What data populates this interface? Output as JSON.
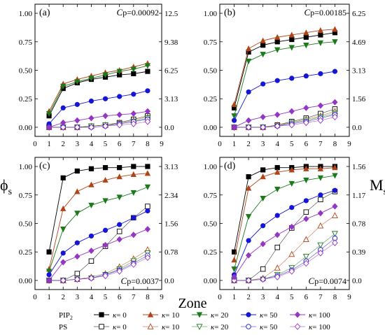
{
  "chart_data": {
    "type": "line",
    "xlabel": "Zone",
    "ylabel_left": "ϕ",
    "ylabel_left_sub": "s",
    "ylabel_right": "M",
    "ylabel_right_sub": "s",
    "legend": {
      "placement": "bottom",
      "groups": [
        {
          "label": "PIP",
          "sub": "2",
          "filled": true
        },
        {
          "label": "PS",
          "sub": "",
          "filled": false
        }
      ],
      "entries": [
        {
          "series_key": "k0",
          "label_prefix": "κ",
          "label_value": "= 0",
          "color": "#000000",
          "marker": "square"
        },
        {
          "series_key": "k10",
          "label_prefix": "κ",
          "label_value": "= 10",
          "color": "#b04418",
          "marker": "triangle-up"
        },
        {
          "series_key": "k20",
          "label_prefix": "κ",
          "label_value": "= 20",
          "color": "#1c7a1c",
          "marker": "triangle-down"
        },
        {
          "series_key": "k50",
          "label_prefix": "κ",
          "label_value": "= 50",
          "color": "#1515d6",
          "marker": "circle"
        },
        {
          "series_key": "k100",
          "label_prefix": "κ",
          "label_value": "= 100",
          "color": "#9436c4",
          "marker": "diamond"
        }
      ]
    },
    "x_ticks": [
      "0",
      "1",
      "2",
      "3",
      "4",
      "5",
      "6",
      "7",
      "8",
      "9"
    ],
    "xlim": [
      0,
      9
    ],
    "ylim": [
      -0.08,
      1.08
    ],
    "y_ticks": [
      0.0,
      0.25,
      0.5,
      0.75,
      1.0
    ],
    "y_tick_labels": [
      "0.00",
      "0.25",
      "0.50",
      "0.75",
      "1.00"
    ],
    "x": [
      1,
      2,
      3,
      4,
      5,
      6,
      7,
      8
    ],
    "panels": [
      {
        "tag": "(a)",
        "cp_text": "p=0.00092",
        "cp_position": "top-right",
        "right_ticks": [
          "0.0",
          "3.13",
          "6.25",
          "9.38",
          "12.5"
        ],
        "series": {
          "PIP2": {
            "k0": [
              0.1,
              0.34,
              0.39,
              0.42,
              0.44,
              0.46,
              0.47,
              0.49
            ],
            "k10": [
              0.14,
              0.38,
              0.42,
              0.45,
              0.48,
              0.5,
              0.53,
              0.56
            ],
            "k20": [
              0.12,
              0.36,
              0.4,
              0.43,
              0.46,
              0.49,
              0.51,
              0.54
            ],
            "k50": [
              0.03,
              0.17,
              0.2,
              0.23,
              0.25,
              0.27,
              0.29,
              0.32
            ],
            "k100": [
              0.0,
              0.04,
              0.06,
              0.08,
              0.1,
              0.11,
              0.12,
              0.14
            ]
          },
          "PS": {
            "k0": [
              0.0,
              0.0,
              0.0,
              0.01,
              0.02,
              0.04,
              0.07,
              0.1
            ],
            "k10": [
              0.0,
              0.0,
              0.0,
              0.01,
              0.02,
              0.04,
              0.06,
              0.09
            ],
            "k20": [
              0.0,
              0.0,
              0.0,
              0.01,
              0.02,
              0.03,
              0.05,
              0.08
            ],
            "k50": [
              0.0,
              0.0,
              0.0,
              0.0,
              0.01,
              0.03,
              0.05,
              0.07
            ],
            "k100": [
              0.0,
              0.0,
              0.0,
              0.0,
              0.01,
              0.02,
              0.03,
              0.05
            ]
          }
        }
      },
      {
        "tag": "(b)",
        "cp_text": "p=0.00185",
        "cp_position": "top-right",
        "right_ticks": [
          "0.0",
          "1.56",
          "3.13",
          "4.69",
          "6.25"
        ],
        "series": {
          "PIP2": {
            "k0": [
              0.17,
              0.66,
              0.72,
              0.75,
              0.77,
              0.79,
              0.81,
              0.83
            ],
            "k10": [
              0.2,
              0.69,
              0.76,
              0.79,
              0.81,
              0.83,
              0.85,
              0.86
            ],
            "k20": [
              0.1,
              0.58,
              0.64,
              0.68,
              0.7,
              0.72,
              0.74,
              0.75
            ],
            "k50": [
              0.06,
              0.31,
              0.38,
              0.41,
              0.43,
              0.45,
              0.47,
              0.49
            ],
            "k100": [
              0.0,
              0.06,
              0.09,
              0.11,
              0.14,
              0.17,
              0.19,
              0.22
            ]
          },
          "PS": {
            "k0": [
              0.0,
              0.0,
              0.0,
              0.02,
              0.05,
              0.08,
              0.12,
              0.16
            ],
            "k10": [
              0.0,
              0.0,
              0.0,
              0.02,
              0.04,
              0.07,
              0.1,
              0.14
            ],
            "k20": [
              0.0,
              0.0,
              0.0,
              0.01,
              0.04,
              0.06,
              0.09,
              0.12
            ],
            "k50": [
              0.0,
              0.0,
              0.0,
              0.01,
              0.03,
              0.05,
              0.08,
              0.11
            ],
            "k100": [
              0.0,
              0.0,
              0.0,
              0.01,
              0.02,
              0.04,
              0.06,
              0.09
            ]
          }
        }
      },
      {
        "tag": "(c)",
        "cp_text": "p=0.0037",
        "cp_position": "bottom-right",
        "right_ticks": [
          "0.0",
          "0.78",
          "1.56",
          "2.34",
          "3.13"
        ],
        "series": {
          "PIP2": {
            "k0": [
              0.25,
              0.9,
              0.96,
              0.98,
              0.99,
              0.99,
              1.0,
              1.0
            ],
            "k10": [
              0.1,
              0.63,
              0.78,
              0.84,
              0.88,
              0.91,
              0.93,
              0.94
            ],
            "k20": [
              0.08,
              0.45,
              0.59,
              0.66,
              0.7,
              0.73,
              0.77,
              0.82
            ],
            "k50": [
              0.05,
              0.24,
              0.33,
              0.39,
              0.44,
              0.49,
              0.55,
              0.61
            ],
            "k100": [
              0.0,
              0.16,
              0.21,
              0.26,
              0.31,
              0.36,
              0.4,
              0.45
            ]
          },
          "PS": {
            "k0": [
              0.0,
              0.0,
              0.06,
              0.17,
              0.3,
              0.43,
              0.55,
              0.65
            ],
            "k10": [
              0.0,
              0.0,
              0.01,
              0.03,
              0.06,
              0.12,
              0.19,
              0.27
            ],
            "k20": [
              0.0,
              0.0,
              0.01,
              0.02,
              0.05,
              0.1,
              0.17,
              0.24
            ],
            "k50": [
              0.0,
              0.0,
              0.01,
              0.02,
              0.05,
              0.09,
              0.15,
              0.22
            ],
            "k100": [
              0.0,
              0.0,
              0.01,
              0.02,
              0.04,
              0.08,
              0.14,
              0.2
            ]
          }
        }
      },
      {
        "tag": "(d)",
        "cp_text": "p=0.0074",
        "cp_position": "bottom-right",
        "right_ticks": [
          "0.0",
          "0.39",
          "0.78",
          "1.17",
          "1.56"
        ],
        "series": {
          "PIP2": {
            "k0": [
              0.25,
              0.91,
              0.97,
              0.99,
              0.99,
              1.0,
              1.0,
              1.0
            ],
            "k10": [
              0.18,
              0.81,
              0.91,
              0.95,
              0.97,
              0.98,
              0.98,
              0.99
            ],
            "k20": [
              0.1,
              0.56,
              0.72,
              0.8,
              0.85,
              0.88,
              0.9,
              0.92
            ],
            "k50": [
              0.05,
              0.35,
              0.48,
              0.57,
              0.64,
              0.7,
              0.75,
              0.79
            ],
            "k100": [
              0.03,
              0.22,
              0.32,
              0.4,
              0.47,
              0.54,
              0.59,
              0.65
            ]
          },
          "PS": {
            "k0": [
              0.0,
              0.0,
              0.1,
              0.29,
              0.46,
              0.6,
              0.71,
              0.78
            ],
            "k10": [
              0.0,
              0.0,
              0.02,
              0.11,
              0.23,
              0.36,
              0.48,
              0.57
            ],
            "k20": [
              0.0,
              0.0,
              0.01,
              0.05,
              0.11,
              0.21,
              0.31,
              0.41
            ],
            "k50": [
              0.0,
              0.0,
              0.01,
              0.04,
              0.09,
              0.17,
              0.27,
              0.37
            ],
            "k100": [
              0.0,
              0.0,
              0.01,
              0.03,
              0.08,
              0.15,
              0.24,
              0.33
            ]
          }
        }
      }
    ]
  }
}
